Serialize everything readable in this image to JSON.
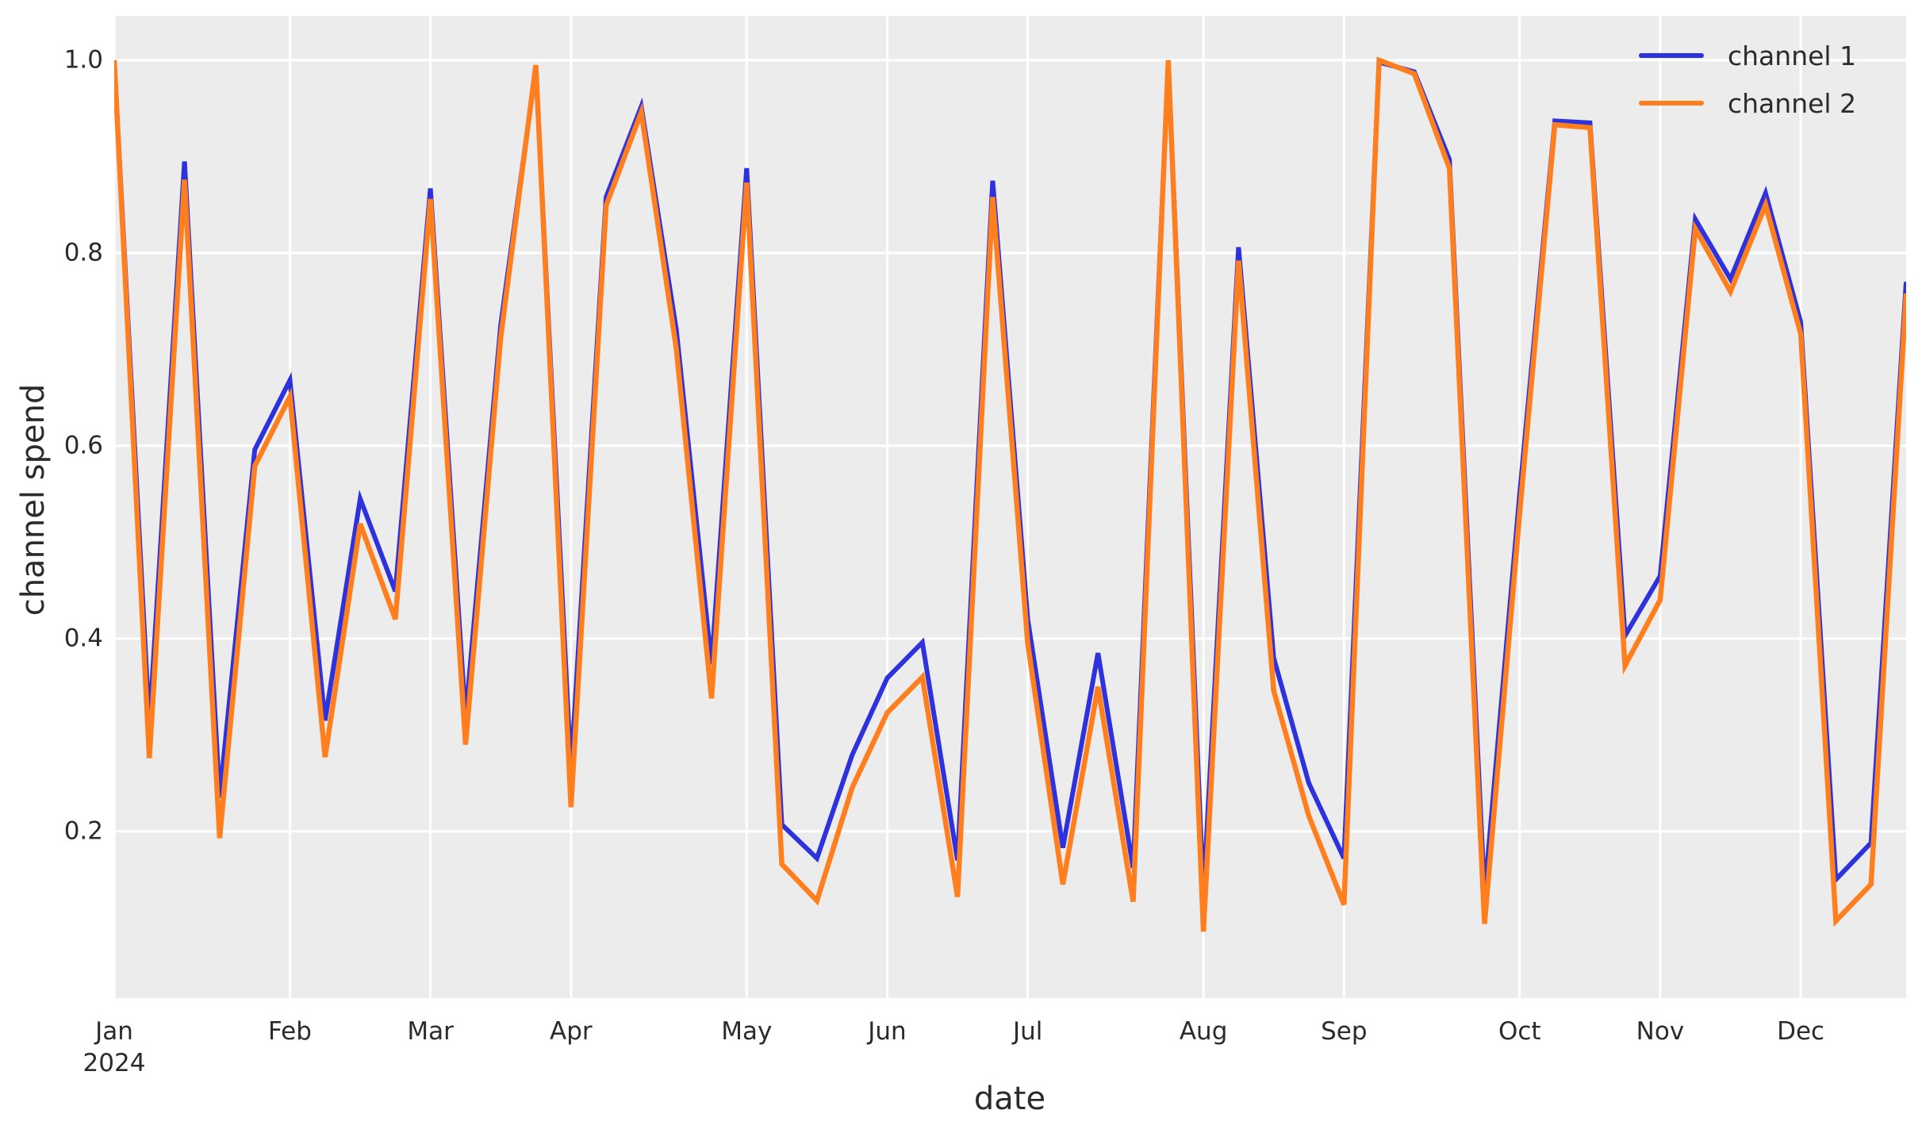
{
  "figure": {
    "background_color": "#ffffff",
    "plot_background_color": "#ececec",
    "gridline_color": "#ffffff",
    "text_color": "#2b2b2b"
  },
  "chart_data": {
    "type": "line",
    "title": "",
    "xlabel": "date",
    "ylabel": "channel spend",
    "grid": true,
    "legend_position": "upper right",
    "x_description": "weekly dates for year 2024, 52 points from Jan 1 to Dec 23",
    "xlim": [
      0,
      51
    ],
    "ylim": [
      0.027,
      1.046
    ],
    "y_ticks": [
      1.0,
      0.8,
      0.6,
      0.4,
      0.2
    ],
    "y_tick_labels": [
      "1.0",
      "0.8",
      "0.6",
      "0.4",
      "0.2"
    ],
    "x_tick_positions": [
      0,
      5,
      9,
      13,
      18,
      22,
      26,
      31,
      35,
      40,
      44,
      48
    ],
    "x_tick_labels": [
      "Jan",
      "Feb",
      "Mar",
      "Apr",
      "May",
      "Jun",
      "Jul",
      "Aug",
      "Sep",
      "Oct",
      "Nov",
      "Dec"
    ],
    "x_first_tick_subline": "2024",
    "series": [
      {
        "name": "channel 1",
        "color": "#2d32dc",
        "line_width": 6,
        "values": [
          1.0,
          0.31,
          0.895,
          0.235,
          0.596,
          0.668,
          0.315,
          0.545,
          0.449,
          0.867,
          0.318,
          0.725,
          0.991,
          0.263,
          0.858,
          0.952,
          0.72,
          0.373,
          0.888,
          0.207,
          0.172,
          0.279,
          0.359,
          0.396,
          0.17,
          0.875,
          0.42,
          0.183,
          0.385,
          0.162,
          0.997,
          0.134,
          0.806,
          0.38,
          0.25,
          0.172,
          0.998,
          0.988,
          0.897,
          0.134,
          0.55,
          0.937,
          0.935,
          0.403,
          0.465,
          0.835,
          0.773,
          0.862,
          0.728,
          0.15,
          0.188,
          0.77
        ]
      },
      {
        "name": "channel 2",
        "color": "#ff7f1e",
        "line_width": 6.5,
        "values": [
          1.0,
          0.276,
          0.876,
          0.193,
          0.579,
          0.651,
          0.277,
          0.519,
          0.42,
          0.856,
          0.29,
          0.712,
          0.995,
          0.225,
          0.849,
          0.946,
          0.7,
          0.338,
          0.873,
          0.166,
          0.128,
          0.245,
          0.323,
          0.36,
          0.132,
          0.858,
          0.395,
          0.145,
          0.35,
          0.127,
          1.0,
          0.096,
          0.792,
          0.346,
          0.216,
          0.124,
          1.0,
          0.986,
          0.888,
          0.104,
          0.53,
          0.933,
          0.93,
          0.372,
          0.44,
          0.825,
          0.76,
          0.85,
          0.716,
          0.107,
          0.145,
          0.758
        ]
      }
    ]
  }
}
